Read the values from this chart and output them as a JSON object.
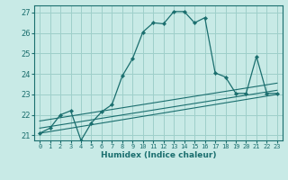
{
  "title": "",
  "xlabel": "Humidex (Indice chaleur)",
  "background_color": "#c8eae6",
  "grid_color": "#9ecfca",
  "line_color": "#1a6e6e",
  "xlim": [
    -0.5,
    23.5
  ],
  "ylim": [
    20.75,
    27.35
  ],
  "xticks": [
    0,
    1,
    2,
    3,
    4,
    5,
    6,
    7,
    8,
    9,
    10,
    11,
    12,
    13,
    14,
    15,
    16,
    17,
    18,
    19,
    20,
    21,
    22,
    23
  ],
  "yticks": [
    21,
    22,
    23,
    24,
    25,
    26,
    27
  ],
  "main_curve": {
    "x": [
      0,
      1,
      2,
      3,
      4,
      5,
      6,
      7,
      8,
      9,
      10,
      11,
      12,
      13,
      14,
      15,
      16,
      17,
      18,
      19,
      20,
      21,
      22,
      23
    ],
    "y": [
      21.1,
      21.35,
      22.0,
      22.2,
      20.75,
      21.6,
      22.15,
      22.5,
      23.9,
      24.75,
      26.05,
      26.5,
      26.45,
      27.05,
      27.05,
      26.5,
      26.75,
      24.05,
      23.85,
      23.05,
      23.05,
      24.85,
      23.05,
      23.05
    ]
  },
  "line1": {
    "x": [
      0,
      23
    ],
    "y": [
      21.1,
      23.0
    ]
  },
  "line2": {
    "x": [
      0,
      23
    ],
    "y": [
      21.35,
      23.2
    ]
  },
  "line3": {
    "x": [
      0,
      23
    ],
    "y": [
      21.7,
      23.55
    ]
  }
}
